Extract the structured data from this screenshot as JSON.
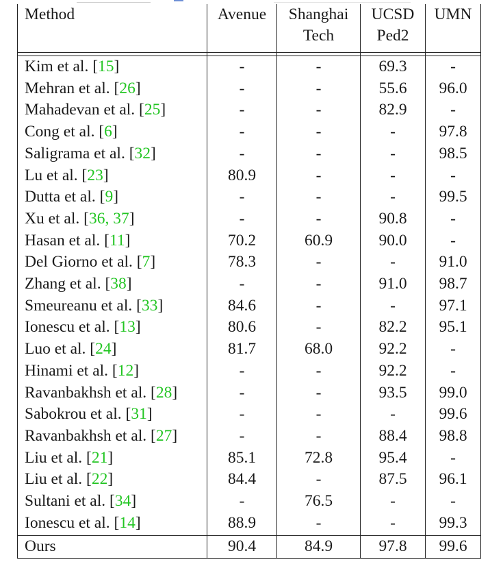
{
  "header": {
    "method": "Method",
    "avenue": "Avenue",
    "shanghaitech_line1": "Shanghai",
    "shanghaitech_line2": "Tech",
    "ucsd_line1": "UCSD",
    "ucsd_line2": "Ped2",
    "umn": "UMN"
  },
  "rows": [
    {
      "author": "Kim et al. [",
      "refs": "15",
      "close": "]",
      "avenue": "-",
      "shanghaitech": "-",
      "ucsd": "69.3",
      "umn": "-"
    },
    {
      "author": "Mehran et al. [",
      "refs": "26",
      "close": "]",
      "avenue": "-",
      "shanghaitech": "-",
      "ucsd": "55.6",
      "umn": "96.0"
    },
    {
      "author": "Mahadevan et al. [",
      "refs": "25",
      "close": "]",
      "avenue": "-",
      "shanghaitech": "-",
      "ucsd": "82.9",
      "umn": "-"
    },
    {
      "author": "Cong et al. [",
      "refs": "6",
      "close": "]",
      "avenue": "-",
      "shanghaitech": "-",
      "ucsd": "-",
      "umn": "97.8"
    },
    {
      "author": "Saligrama et al. [",
      "refs": "32",
      "close": "]",
      "avenue": "-",
      "shanghaitech": "-",
      "ucsd": "-",
      "umn": "98.5"
    },
    {
      "author": "Lu et al. [",
      "refs": "23",
      "close": "]",
      "avenue": "80.9",
      "shanghaitech": "-",
      "ucsd": "-",
      "umn": "-"
    },
    {
      "author": "Dutta et al. [",
      "refs": "9",
      "close": "]",
      "avenue": "-",
      "shanghaitech": "-",
      "ucsd": "-",
      "umn": "99.5"
    },
    {
      "author": "Xu et al. [",
      "refs": "36, 37",
      "close": "]",
      "avenue": "-",
      "shanghaitech": "-",
      "ucsd": "90.8",
      "umn": "-"
    },
    {
      "author": "Hasan et al. [",
      "refs": "11",
      "close": "]",
      "avenue": "70.2",
      "shanghaitech": "60.9",
      "ucsd": "90.0",
      "umn": "-"
    },
    {
      "author": "Del Giorno et al. [",
      "refs": "7",
      "close": "]",
      "avenue": "78.3",
      "shanghaitech": "-",
      "ucsd": "-",
      "umn": "91.0"
    },
    {
      "author": "Zhang et al. [",
      "refs": "38",
      "close": "]",
      "avenue": "-",
      "shanghaitech": "-",
      "ucsd": "91.0",
      "umn": "98.7"
    },
    {
      "author": "Smeureanu et al. [",
      "refs": "33",
      "close": "]",
      "avenue": "84.6",
      "shanghaitech": "-",
      "ucsd": "-",
      "umn": "97.1"
    },
    {
      "author": "Ionescu et al. [",
      "refs": "13",
      "close": "]",
      "avenue": "80.6",
      "shanghaitech": "-",
      "ucsd": "82.2",
      "umn": "95.1"
    },
    {
      "author": "Luo et al. [",
      "refs": "24",
      "close": "]",
      "avenue": "81.7",
      "shanghaitech": "68.0",
      "ucsd": "92.2",
      "umn": "-"
    },
    {
      "author": "Hinami et al. [",
      "refs": "12",
      "close": "]",
      "avenue": "-",
      "shanghaitech": "-",
      "ucsd": "92.2",
      "umn": "-"
    },
    {
      "author": "Ravanbakhsh et al. [",
      "refs": "28",
      "close": "]",
      "avenue": "-",
      "shanghaitech": "-",
      "ucsd": "93.5",
      "umn": "99.0"
    },
    {
      "author": "Sabokrou et al. [",
      "refs": "31",
      "close": "]",
      "avenue": "-",
      "shanghaitech": "-",
      "ucsd": "-",
      "umn": "99.6",
      "umn_bold": true
    },
    {
      "author": "Ravanbakhsh et al. [",
      "refs": "27",
      "close": "]",
      "avenue": "-",
      "shanghaitech": "-",
      "ucsd": "88.4",
      "umn": "98.8"
    },
    {
      "author": "Liu et al. [",
      "refs": "21",
      "close": "]",
      "avenue": "85.1",
      "shanghaitech": "72.8",
      "ucsd": "95.4",
      "umn": "-"
    },
    {
      "author": "Liu et al. [",
      "refs": "22",
      "close": "]",
      "avenue": "84.4",
      "shanghaitech": "-",
      "ucsd": "87.5",
      "umn": "96.1"
    },
    {
      "author": "Sultani et al. [",
      "refs": "34",
      "close": "]",
      "avenue": "-",
      "shanghaitech": "76.5",
      "ucsd": "-",
      "umn": "-"
    },
    {
      "author": "Ionescu et al. [",
      "refs": "14",
      "close": "]",
      "avenue": "88.9",
      "shanghaitech": "-",
      "ucsd": "-",
      "umn": "99.3"
    }
  ],
  "ours": {
    "method": "Ours",
    "avenue": "90.4",
    "shanghaitech": "84.9",
    "ucsd": "97.8",
    "umn": "99.6"
  },
  "colors": {
    "reference_link": "#22c522",
    "text": "#1a1a1a"
  }
}
